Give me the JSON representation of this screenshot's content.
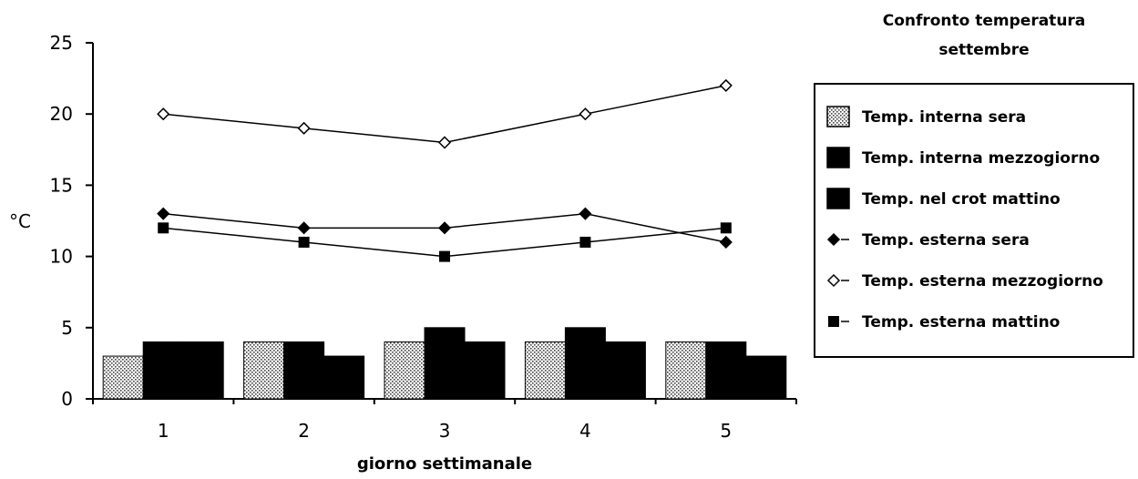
{
  "chart_data": {
    "type": "bar",
    "title": [
      "Confronto temperatura",
      "settembre"
    ],
    "xlabel": "giorno settimanale",
    "ylabel": "°C",
    "categories": [
      "1",
      "2",
      "3",
      "4",
      "5"
    ],
    "ylim": [
      0,
      25
    ],
    "yticks": [
      0,
      5,
      10,
      15,
      20,
      25
    ],
    "grid": false,
    "legend_position": "right",
    "bar_series": [
      {
        "name": "Temp. interna sera",
        "values": [
          3,
          4,
          4,
          4,
          4
        ],
        "fill": "dotted"
      },
      {
        "name": "Temp. interna mezzogiorno",
        "values": [
          4,
          4,
          5,
          5,
          4
        ],
        "fill": "#000000"
      },
      {
        "name": "Temp. nel crot mattino",
        "values": [
          4,
          3,
          4,
          4,
          3
        ],
        "fill": "#000000"
      }
    ],
    "line_series": [
      {
        "name": "Temp. esterna sera",
        "values": [
          13,
          12,
          12,
          13,
          11
        ],
        "marker": "diamond-filled"
      },
      {
        "name": "Temp. esterna mezzogiorno",
        "values": [
          20,
          19,
          18,
          20,
          22
        ],
        "marker": "diamond-open"
      },
      {
        "name": "Temp. esterna mattino",
        "values": [
          12,
          11,
          10,
          11,
          12
        ],
        "marker": "square-filled"
      }
    ]
  }
}
